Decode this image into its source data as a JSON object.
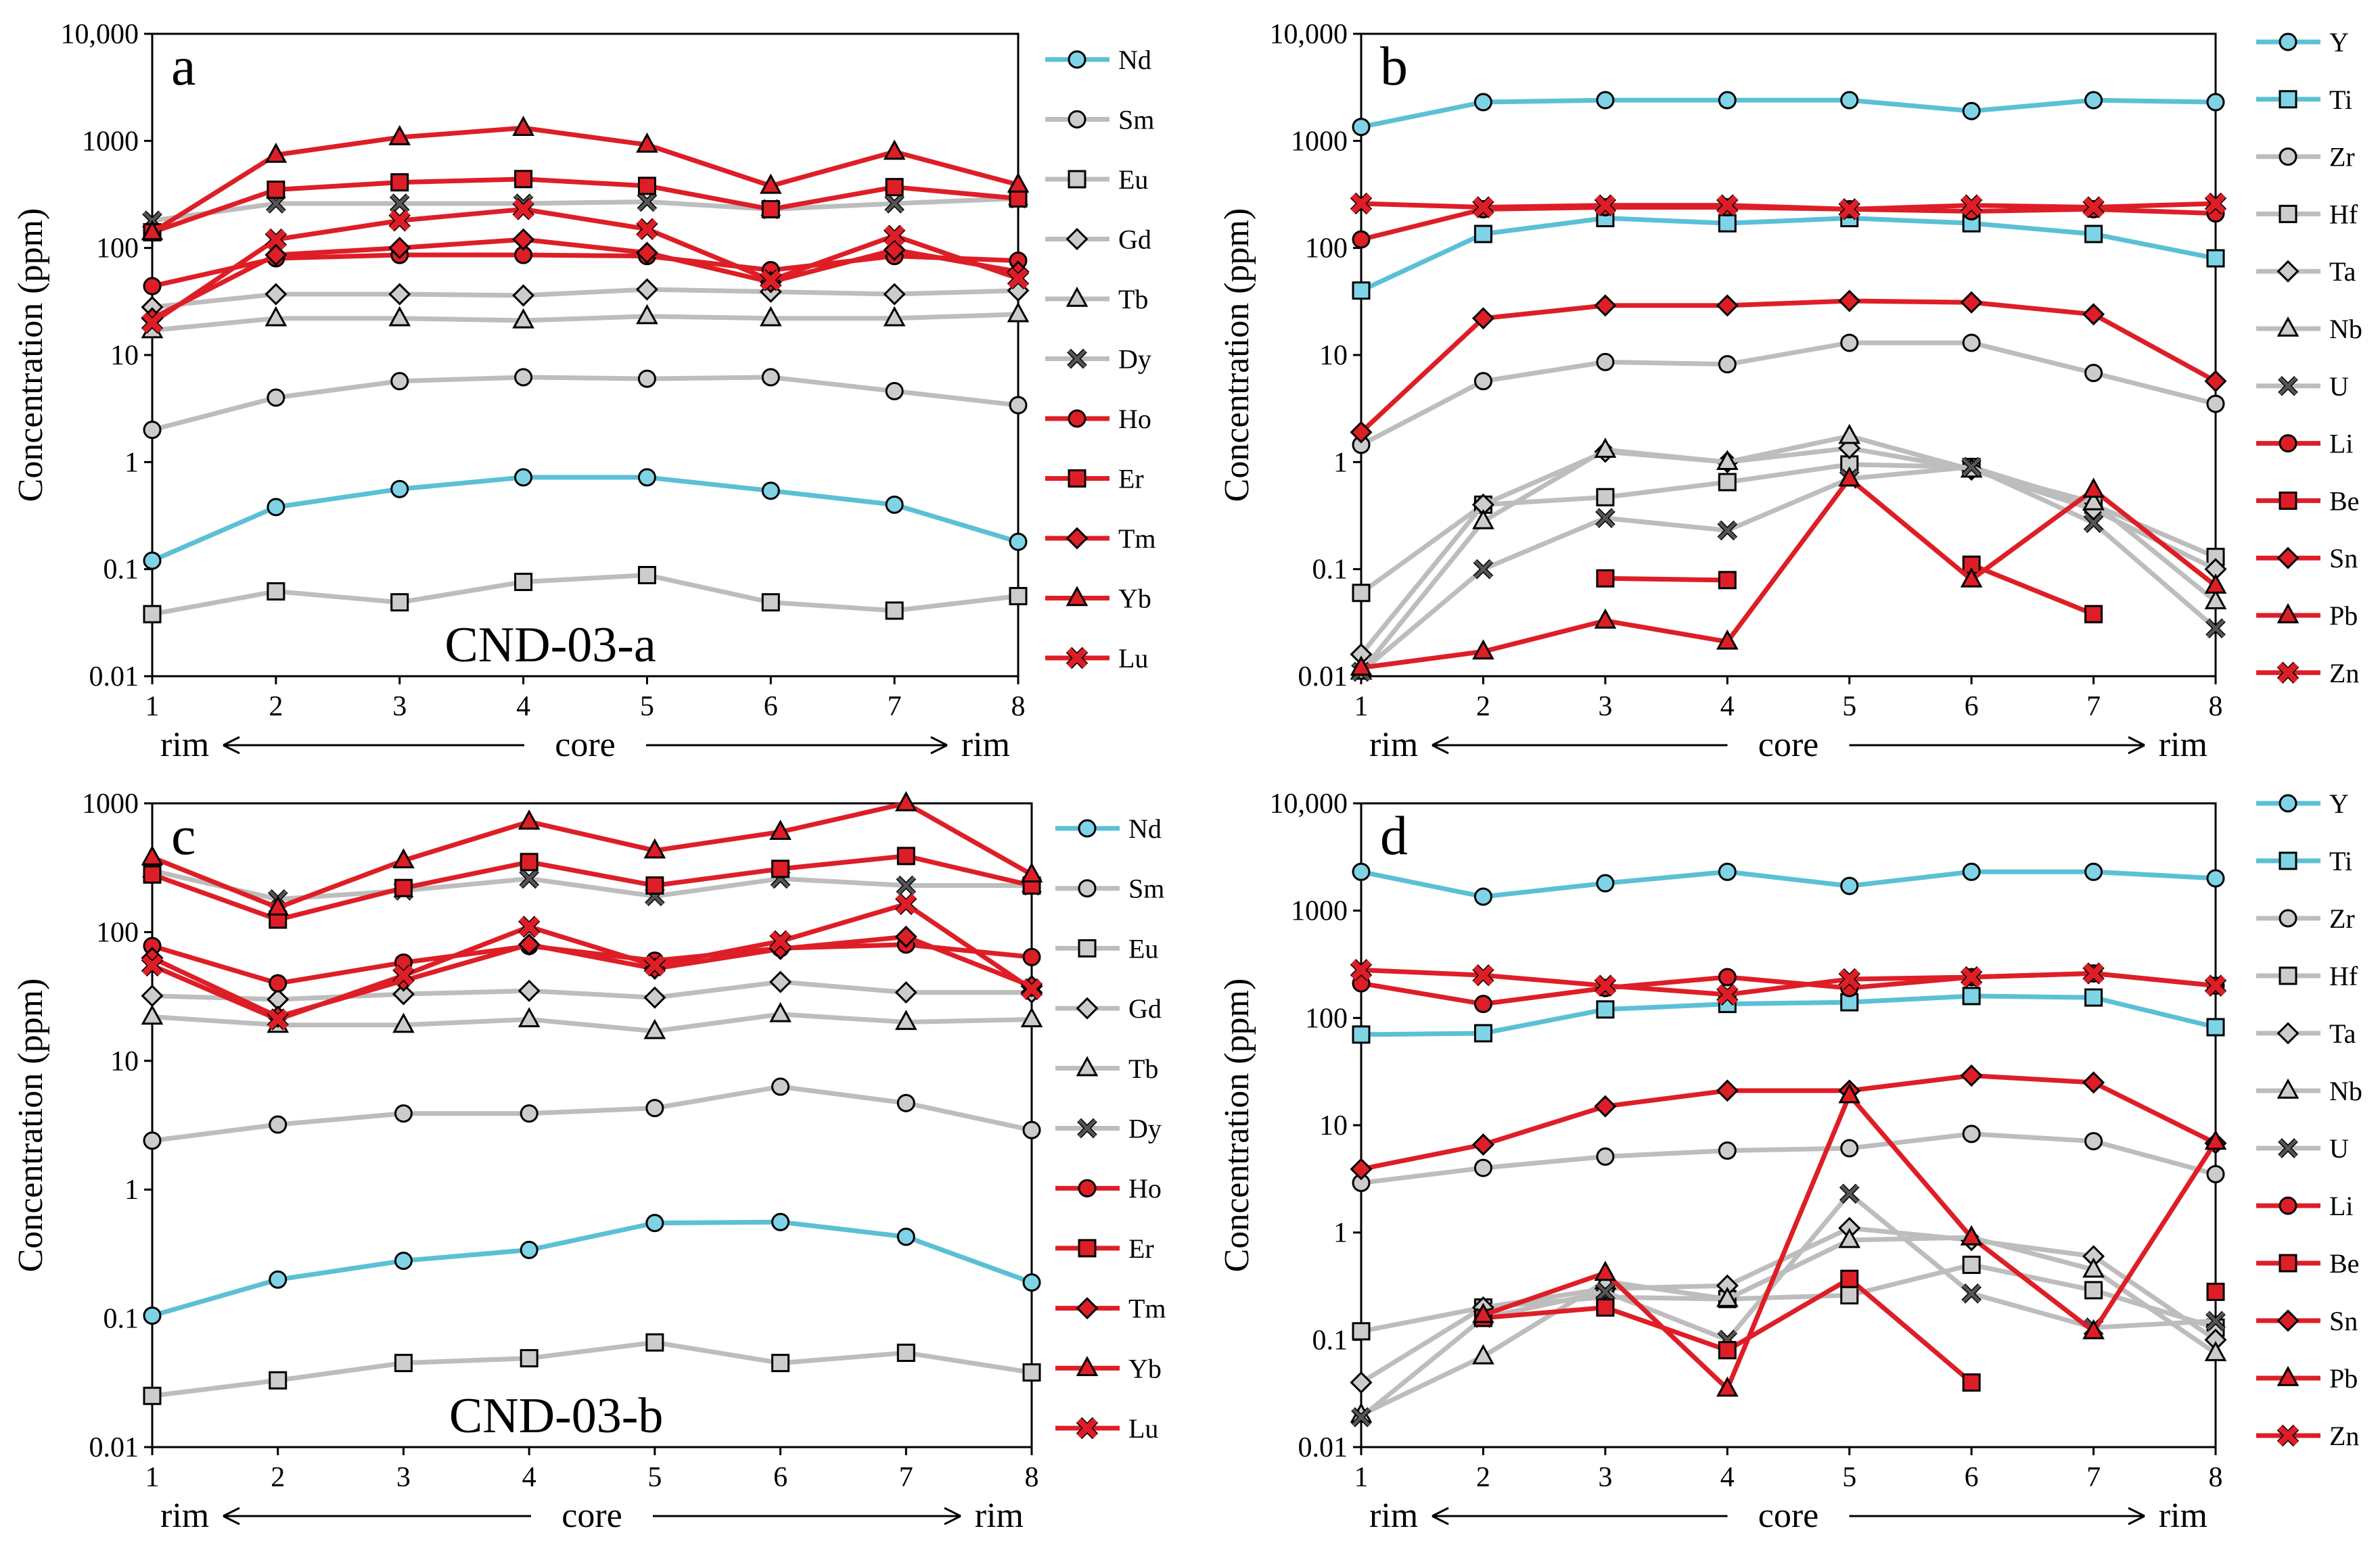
{
  "colors": {
    "blue": "#5BC0D6",
    "gray": "#BDBDBD",
    "red": "#DE1E26",
    "marker_gray": "#CCCCCC",
    "marker_blue": "#7FD3E6"
  },
  "chart_data": [
    {
      "type": "line",
      "panel_letter": "a",
      "sample_label": "CND-03-a",
      "ylabel": "Concentration (ppm)",
      "yscale": "log",
      "ylim": [
        0.01,
        10000
      ],
      "yticks": [
        {
          "v": 0.01,
          "label": "0.01"
        },
        {
          "v": 0.1,
          "label": "0.1"
        },
        {
          "v": 1,
          "label": "1"
        },
        {
          "v": 10,
          "label": "10"
        },
        {
          "v": 100,
          "label": "100"
        },
        {
          "v": 1000,
          "label": "1000"
        },
        {
          "v": 10000,
          "label": "10,000"
        }
      ],
      "x": [
        1,
        2,
        3,
        4,
        5,
        6,
        7,
        8
      ],
      "x_labels": [
        "1",
        "2",
        "3",
        "4",
        "5",
        "6",
        "7",
        "8"
      ],
      "direction": {
        "left": "rim",
        "center": "core",
        "right": "rim"
      },
      "series": [
        {
          "name": "Nd",
          "color": "blue",
          "marker": "circle",
          "values": [
            0.12,
            0.38,
            0.56,
            0.72,
            0.72,
            0.54,
            0.4,
            0.18
          ]
        },
        {
          "name": "Sm",
          "color": "gray",
          "marker": "circle",
          "values": [
            2.0,
            4.0,
            5.7,
            6.2,
            6.0,
            6.2,
            4.6,
            3.4
          ]
        },
        {
          "name": "Eu",
          "color": "gray",
          "marker": "square",
          "values": [
            0.038,
            0.062,
            0.049,
            0.076,
            0.088,
            0.049,
            0.041,
            0.056
          ]
        },
        {
          "name": "Gd",
          "color": "gray",
          "marker": "diamond",
          "values": [
            28,
            37,
            37,
            36,
            41,
            39,
            37,
            40
          ]
        },
        {
          "name": "Tb",
          "color": "gray",
          "marker": "triangle",
          "values": [
            17,
            22,
            22,
            21,
            23,
            22,
            22,
            24
          ]
        },
        {
          "name": "Dy",
          "color": "gray",
          "marker": "cross",
          "values": [
            180,
            260,
            260,
            260,
            270,
            230,
            260,
            290
          ]
        },
        {
          "name": "Ho",
          "color": "red",
          "marker": "circle",
          "values": [
            44,
            80,
            86,
            86,
            84,
            62,
            84,
            76
          ]
        },
        {
          "name": "Er",
          "color": "red",
          "marker": "square",
          "values": [
            140,
            350,
            410,
            440,
            380,
            230,
            370,
            290
          ]
        },
        {
          "name": "Tm",
          "color": "red",
          "marker": "diamond",
          "values": [
            22,
            86,
            100,
            120,
            90,
            48,
            96,
            60
          ]
        },
        {
          "name": "Yb",
          "color": "red",
          "marker": "triangle",
          "values": [
            140,
            740,
            1080,
            1320,
            920,
            380,
            790,
            390
          ]
        },
        {
          "name": "Lu",
          "color": "red",
          "marker": "cross",
          "values": [
            20,
            120,
            180,
            230,
            150,
            50,
            130,
            52
          ]
        }
      ]
    },
    {
      "type": "line",
      "panel_letter": "b",
      "ylabel": "Concentration (ppm)",
      "yscale": "log",
      "ylim": [
        0.01,
        10000
      ],
      "yticks": [
        {
          "v": 0.01,
          "label": "0.01"
        },
        {
          "v": 0.1,
          "label": "0.1"
        },
        {
          "v": 1,
          "label": "1"
        },
        {
          "v": 10,
          "label": "10"
        },
        {
          "v": 100,
          "label": "100"
        },
        {
          "v": 1000,
          "label": "1000"
        },
        {
          "v": 10000,
          "label": "10,000"
        }
      ],
      "x": [
        1,
        2,
        3,
        4,
        5,
        6,
        7,
        8
      ],
      "x_labels": [
        "1",
        "2",
        "3",
        "4",
        "5",
        "6",
        "7",
        "8"
      ],
      "direction": {
        "left": "rim",
        "center": "core",
        "right": "rim"
      },
      "series": [
        {
          "name": "Y",
          "color": "blue",
          "marker": "circle",
          "values": [
            1350,
            2300,
            2400,
            2400,
            2400,
            1900,
            2400,
            2300
          ]
        },
        {
          "name": "Ti",
          "color": "blue",
          "marker": "square",
          "values": [
            40,
            135,
            190,
            170,
            190,
            170,
            135,
            80
          ]
        },
        {
          "name": "Zr",
          "color": "gray",
          "marker": "circle",
          "values": [
            1.45,
            5.7,
            8.6,
            8.2,
            13,
            13,
            6.8,
            3.5
          ]
        },
        {
          "name": "Hf",
          "color": "gray",
          "marker": "square",
          "values": [
            0.06,
            0.4,
            0.47,
            0.65,
            0.95,
            0.9,
            0.4,
            0.13
          ]
        },
        {
          "name": "Ta",
          "color": "gray",
          "marker": "diamond",
          "values": [
            0.016,
            0.4,
            1.25,
            1.0,
            1.35,
            0.85,
            0.36,
            0.1
          ]
        },
        {
          "name": "Nb",
          "color": "gray",
          "marker": "triangle",
          "values": [
            0.011,
            0.28,
            1.3,
            1.0,
            1.75,
            0.85,
            0.42,
            0.05
          ]
        },
        {
          "name": "U",
          "color": "gray",
          "marker": "cross",
          "values": [
            0.011,
            0.1,
            0.3,
            0.23,
            0.7,
            0.9,
            0.27,
            0.028
          ]
        },
        {
          "name": "Li",
          "color": "red",
          "marker": "circle",
          "values": [
            120,
            230,
            240,
            240,
            230,
            220,
            230,
            210
          ]
        },
        {
          "name": "Be",
          "color": "red",
          "marker": "square",
          "values": [
            null,
            null,
            0.082,
            0.079,
            null,
            0.11,
            0.038,
            null
          ]
        },
        {
          "name": "Sn",
          "color": "red",
          "marker": "diamond",
          "values": [
            1.9,
            22,
            29,
            29,
            32,
            31,
            24,
            5.7
          ]
        },
        {
          "name": "Pb",
          "color": "red",
          "marker": "triangle",
          "values": [
            0.012,
            0.017,
            0.033,
            0.021,
            0.7,
            0.08,
            0.55,
            0.07
          ]
        },
        {
          "name": "Zn",
          "color": "red",
          "marker": "cross",
          "values": [
            260,
            240,
            250,
            250,
            230,
            250,
            240,
            260
          ]
        }
      ]
    },
    {
      "type": "line",
      "panel_letter": "c",
      "sample_label": "CND-03-b",
      "ylabel": "Concentration (ppm)",
      "yscale": "log",
      "ylim": [
        0.01,
        1000
      ],
      "yticks": [
        {
          "v": 0.01,
          "label": "0.01"
        },
        {
          "v": 0.1,
          "label": "0.1"
        },
        {
          "v": 1,
          "label": "1"
        },
        {
          "v": 10,
          "label": "10"
        },
        {
          "v": 100,
          "label": "100"
        },
        {
          "v": 1000,
          "label": "1000"
        }
      ],
      "x": [
        1,
        2,
        3,
        4,
        5,
        6,
        7,
        8
      ],
      "x_labels": [
        "1",
        "2",
        "3",
        "4",
        "5",
        "6",
        "7",
        "8"
      ],
      "direction": {
        "left": "rim",
        "center": "core",
        "right": "rim"
      },
      "series": [
        {
          "name": "Nd",
          "color": "blue",
          "marker": "circle",
          "values": [
            0.105,
            0.2,
            0.28,
            0.34,
            0.55,
            0.56,
            0.43,
            0.19
          ]
        },
        {
          "name": "Sm",
          "color": "gray",
          "marker": "circle",
          "values": [
            2.4,
            3.2,
            3.9,
            3.9,
            4.3,
            6.3,
            4.7,
            2.9
          ]
        },
        {
          "name": "Eu",
          "color": "gray",
          "marker": "square",
          "values": [
            0.025,
            0.033,
            0.045,
            0.049,
            0.065,
            0.045,
            0.054,
            0.038
          ]
        },
        {
          "name": "Gd",
          "color": "gray",
          "marker": "diamond",
          "values": [
            32,
            30,
            33,
            35,
            31,
            41,
            34,
            34
          ]
        },
        {
          "name": "Tb",
          "color": "gray",
          "marker": "triangle",
          "values": [
            22,
            19,
            19,
            21,
            17,
            23,
            20,
            21
          ]
        },
        {
          "name": "Dy",
          "color": "gray",
          "marker": "cross",
          "values": [
            300,
            180,
            210,
            260,
            190,
            260,
            230,
            230
          ]
        },
        {
          "name": "Ho",
          "color": "red",
          "marker": "circle",
          "values": [
            78,
            40,
            58,
            78,
            60,
            75,
            80,
            64
          ]
        },
        {
          "name": "Er",
          "color": "red",
          "marker": "square",
          "values": [
            280,
            125,
            220,
            350,
            230,
            310,
            390,
            230
          ]
        },
        {
          "name": "Tm",
          "color": "red",
          "marker": "diamond",
          "values": [
            63,
            22,
            42,
            80,
            52,
            74,
            92,
            38
          ]
        },
        {
          "name": "Yb",
          "color": "red",
          "marker": "triangle",
          "values": [
            380,
            155,
            360,
            720,
            430,
            600,
            1000,
            280
          ]
        },
        {
          "name": "Lu",
          "color": "red",
          "marker": "cross",
          "values": [
            55,
            21,
            46,
            110,
            55,
            85,
            165,
            36
          ]
        }
      ]
    },
    {
      "type": "line",
      "panel_letter": "d",
      "ylabel": "Concentration (ppm)",
      "yscale": "log",
      "ylim": [
        0.01,
        10000
      ],
      "yticks": [
        {
          "v": 0.01,
          "label": "0.01"
        },
        {
          "v": 0.1,
          "label": "0.1"
        },
        {
          "v": 1,
          "label": "1"
        },
        {
          "v": 10,
          "label": "10"
        },
        {
          "v": 100,
          "label": "100"
        },
        {
          "v": 1000,
          "label": "1000"
        },
        {
          "v": 10000,
          "label": "10,000"
        }
      ],
      "x": [
        1,
        2,
        3,
        4,
        5,
        6,
        7,
        8
      ],
      "x_labels": [
        "1",
        "2",
        "3",
        "4",
        "5",
        "6",
        "7",
        "8"
      ],
      "direction": {
        "left": "rim",
        "center": "core",
        "right": "rim"
      },
      "series": [
        {
          "name": "Y",
          "color": "blue",
          "marker": "circle",
          "values": [
            2300,
            1350,
            1800,
            2300,
            1700,
            2300,
            2300,
            2000
          ]
        },
        {
          "name": "Ti",
          "color": "blue",
          "marker": "square",
          "values": [
            70,
            72,
            120,
            135,
            140,
            160,
            155,
            82
          ]
        },
        {
          "name": "Zr",
          "color": "gray",
          "marker": "circle",
          "values": [
            2.9,
            4.0,
            5.1,
            5.8,
            6.1,
            8.3,
            7.1,
            3.5
          ]
        },
        {
          "name": "Hf",
          "color": "gray",
          "marker": "square",
          "values": [
            0.12,
            0.2,
            0.25,
            0.24,
            0.26,
            0.5,
            0.29,
            0.13
          ]
        },
        {
          "name": "Ta",
          "color": "gray",
          "marker": "diamond",
          "values": [
            0.04,
            0.2,
            0.3,
            0.32,
            1.1,
            0.85,
            0.6,
            0.1
          ]
        },
        {
          "name": "Nb",
          "color": "gray",
          "marker": "triangle",
          "values": [
            0.02,
            0.07,
            0.35,
            0.24,
            0.85,
            0.9,
            0.45,
            0.075
          ]
        },
        {
          "name": "U",
          "color": "gray",
          "marker": "cross",
          "values": [
            0.019,
            0.16,
            0.28,
            0.1,
            2.3,
            0.27,
            0.13,
            0.15
          ]
        },
        {
          "name": "Li",
          "color": "red",
          "marker": "circle",
          "values": [
            210,
            135,
            190,
            240,
            190,
            240,
            260,
            200
          ]
        },
        {
          "name": "Be",
          "color": "red",
          "marker": "square",
          "values": [
            null,
            0.16,
            0.2,
            0.08,
            0.37,
            0.04,
            null,
            0.28
          ]
        },
        {
          "name": "Sn",
          "color": "red",
          "marker": "diamond",
          "values": [
            3.9,
            6.6,
            15,
            21,
            21,
            29,
            25,
            6.8
          ]
        },
        {
          "name": "Pb",
          "color": "red",
          "marker": "triangle",
          "values": [
            null,
            0.17,
            0.42,
            0.035,
            19,
            0.9,
            0.12,
            7.0
          ]
        },
        {
          "name": "Zn",
          "color": "red",
          "marker": "cross",
          "values": [
            280,
            250,
            200,
            165,
            230,
            240,
            260,
            200
          ]
        }
      ]
    }
  ]
}
